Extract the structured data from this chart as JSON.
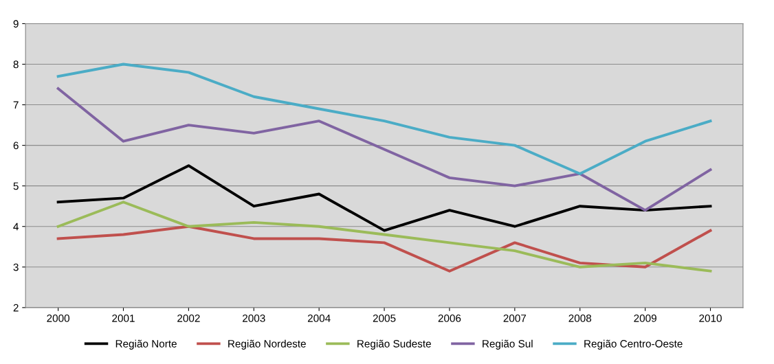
{
  "chart_data": {
    "type": "line",
    "categories": [
      "2000",
      "2001",
      "2002",
      "2003",
      "2004",
      "2005",
      "2006",
      "2007",
      "2008",
      "2009",
      "2010"
    ],
    "series": [
      {
        "name": "Região Norte",
        "color": "#000000",
        "values": [
          4.6,
          4.7,
          5.5,
          4.5,
          4.8,
          3.9,
          4.4,
          4.0,
          4.5,
          4.4,
          4.5
        ]
      },
      {
        "name": "Região Nordeste",
        "color": "#c0504d",
        "values": [
          3.7,
          3.8,
          4.0,
          3.7,
          3.7,
          3.6,
          2.9,
          3.6,
          3.1,
          3.0,
          3.9
        ]
      },
      {
        "name": "Região Sudeste",
        "color": "#9bbb59",
        "values": [
          4.0,
          4.6,
          4.0,
          4.1,
          4.0,
          3.8,
          3.6,
          3.4,
          3.0,
          3.1,
          2.9
        ]
      },
      {
        "name": "Região Sul",
        "color": "#8064a2",
        "values": [
          7.4,
          6.1,
          6.5,
          6.3,
          6.6,
          5.9,
          5.2,
          5.0,
          5.3,
          4.4,
          5.4
        ]
      },
      {
        "name": "Região Centro-Oeste",
        "color": "#4bacc6",
        "values": [
          7.7,
          8.0,
          7.8,
          7.2,
          6.9,
          6.6,
          6.2,
          6.0,
          5.3,
          6.1,
          6.6
        ]
      }
    ],
    "ylim": [
      2,
      9
    ],
    "yticks": [
      2,
      3,
      4,
      5,
      6,
      7,
      8,
      9
    ],
    "grid": "y",
    "legend": "bottom",
    "marker": "none",
    "line_style": "solid"
  }
}
